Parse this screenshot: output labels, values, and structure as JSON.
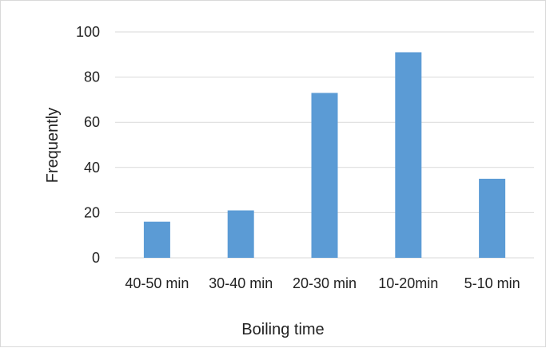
{
  "chart_data": {
    "type": "bar",
    "categories": [
      "40-50 min",
      "30-40 min",
      "20-30 min",
      "10-20min",
      "5-10 min"
    ],
    "values": [
      16,
      21,
      73,
      91,
      35
    ],
    "xlabel": "Boiling time",
    "ylabel": "Frequently",
    "ylim": [
      0,
      100
    ],
    "yticks": [
      0,
      20,
      40,
      60,
      80,
      100
    ],
    "grid": true,
    "legend": "none",
    "bar_color": "#5b9bd5",
    "grid_color": "#d9d9d9"
  }
}
